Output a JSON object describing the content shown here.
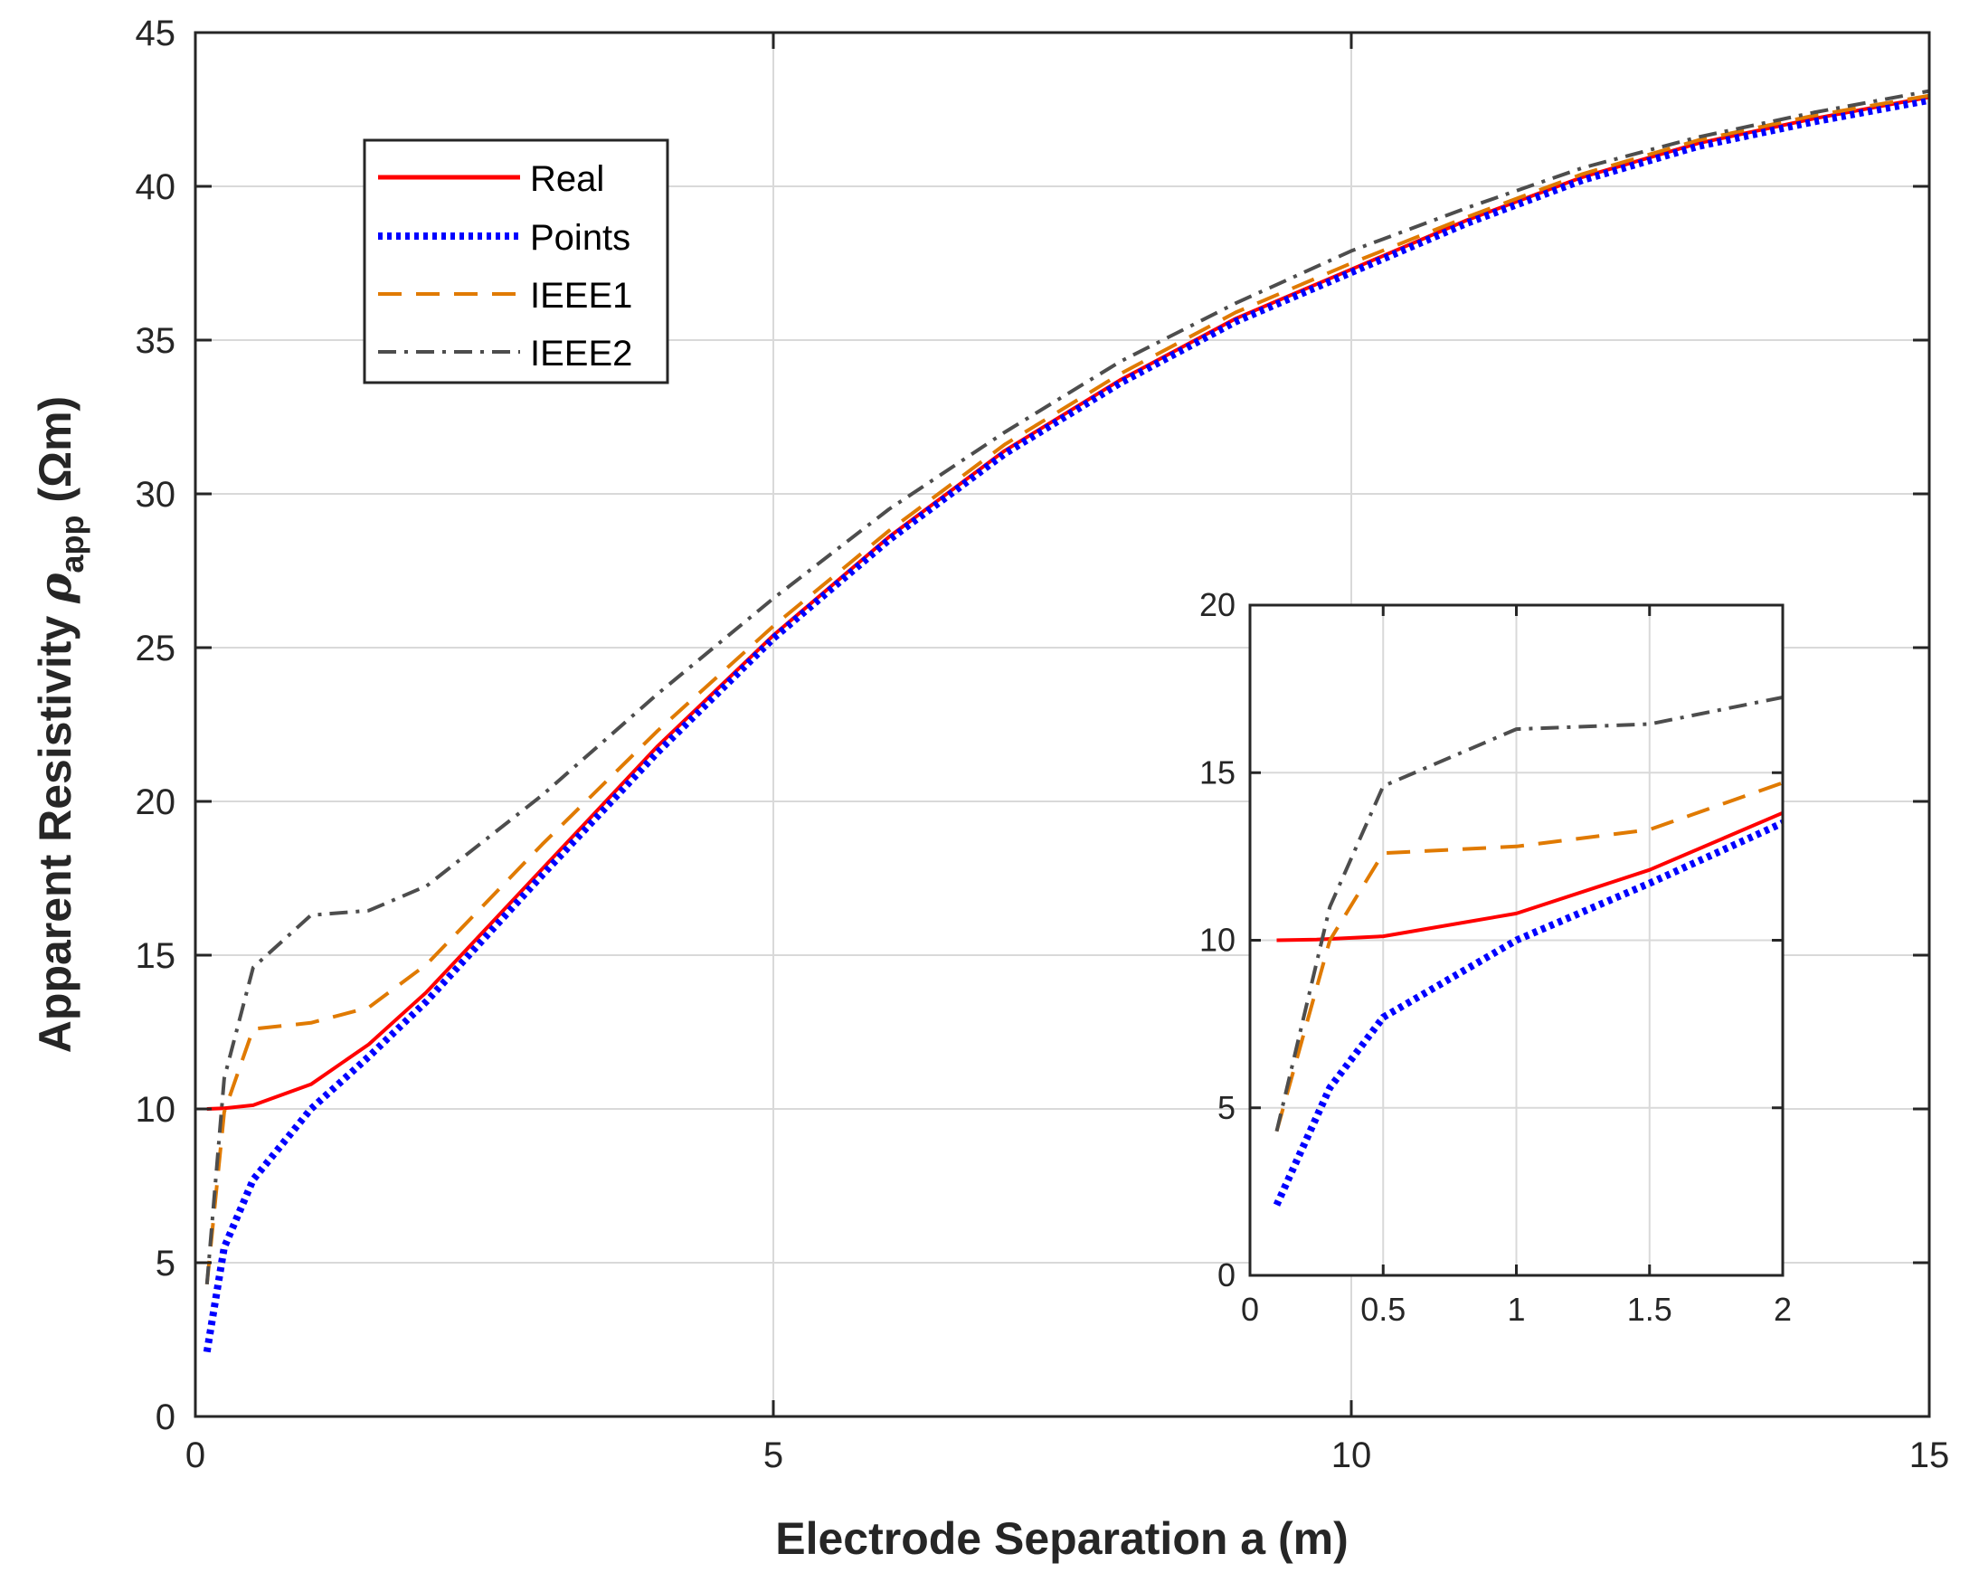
{
  "chart_data": [
    {
      "type": "line",
      "role": "main",
      "xlabel": "Electrode Separation a (m)",
      "ylabel_main": "Apparent Resistivity ",
      "ylabel_symbol": "ρ",
      "ylabel_subscript": "app",
      "ylabel_unit": " (Ωm)",
      "xlim": [
        0,
        15
      ],
      "ylim": [
        0,
        45
      ],
      "xticks": [
        0,
        5,
        10,
        15
      ],
      "yticks": [
        0,
        5,
        10,
        15,
        20,
        25,
        30,
        35,
        40,
        45
      ],
      "grid": true,
      "legend_position": "upper-left",
      "series": [
        {
          "name": "Real",
          "color": "#ff0000",
          "dash": "solid",
          "x": [
            0.1,
            0.25,
            0.5,
            1.0,
            1.5,
            2.0,
            3.0,
            4.0,
            5.0,
            6.0,
            7.0,
            8.0,
            9.0,
            10.0,
            11.0,
            12.0,
            13.0,
            14.0,
            15.0
          ],
          "y": [
            10.0,
            10.02,
            10.12,
            10.8,
            12.1,
            13.8,
            17.8,
            21.8,
            25.4,
            28.6,
            31.4,
            33.7,
            35.7,
            37.3,
            38.9,
            40.3,
            41.4,
            42.2,
            42.9
          ]
        },
        {
          "name": "Points",
          "color": "#0000ff",
          "dash": "dotted",
          "x": [
            0.1,
            0.25,
            0.5,
            1.0,
            1.5,
            2.0,
            3.0,
            4.0,
            5.0,
            6.0,
            7.0,
            8.0,
            9.0,
            10.0,
            11.0,
            12.0,
            13.0,
            14.0,
            15.0
          ],
          "y": [
            2.1,
            5.5,
            7.7,
            10.0,
            11.7,
            13.5,
            17.6,
            21.6,
            25.3,
            28.5,
            31.3,
            33.6,
            35.6,
            37.2,
            38.8,
            40.2,
            41.3,
            42.1,
            42.8
          ]
        },
        {
          "name": "IEEE1",
          "color": "#e07a00",
          "dash": "dashed",
          "x": [
            0.1,
            0.25,
            0.5,
            1.0,
            1.5,
            2.0,
            3.0,
            4.0,
            5.0,
            6.0,
            7.0,
            8.0,
            9.0,
            10.0,
            11.0,
            12.0,
            13.0,
            14.0,
            15.0
          ],
          "y": [
            4.3,
            9.9,
            12.6,
            12.8,
            13.3,
            14.7,
            18.6,
            22.3,
            25.7,
            28.8,
            31.6,
            33.9,
            35.9,
            37.5,
            39.0,
            40.4,
            41.5,
            42.3,
            42.95
          ]
        },
        {
          "name": "IEEE2",
          "color": "#4d4d4d",
          "dash": "dashdot",
          "x": [
            0.1,
            0.25,
            0.5,
            1.0,
            1.5,
            2.0,
            3.0,
            4.0,
            5.0,
            6.0,
            7.0,
            8.0,
            9.0,
            10.0,
            11.0,
            12.0,
            13.0,
            14.0,
            15.0
          ],
          "y": [
            4.3,
            11.0,
            14.6,
            16.3,
            16.45,
            17.25,
            20.2,
            23.5,
            26.6,
            29.5,
            32.0,
            34.3,
            36.2,
            37.9,
            39.3,
            40.6,
            41.6,
            42.4,
            43.1
          ]
        }
      ]
    },
    {
      "type": "line",
      "role": "inset",
      "xlim": [
        0,
        2
      ],
      "ylim": [
        0,
        20
      ],
      "xticks": [
        0,
        0.5,
        1,
        1.5,
        2
      ],
      "xtick_labels": [
        "0",
        "0.5",
        "1",
        "1.5",
        "2"
      ],
      "yticks": [
        0,
        5,
        10,
        15,
        20
      ],
      "grid": true,
      "series": [
        {
          "name": "Real",
          "color": "#ff0000",
          "dash": "solid",
          "x": [
            0.1,
            0.25,
            0.5,
            1.0,
            1.5,
            2.0
          ],
          "y": [
            10.0,
            10.02,
            10.12,
            10.8,
            12.1,
            13.8
          ]
        },
        {
          "name": "Points",
          "color": "#0000ff",
          "dash": "dotted",
          "x": [
            0.1,
            0.3,
            0.5,
            1.0,
            1.5,
            2.0
          ],
          "y": [
            2.1,
            5.6,
            7.7,
            10.0,
            11.7,
            13.5
          ]
        },
        {
          "name": "IEEE1",
          "color": "#e07a00",
          "dash": "dashed",
          "x": [
            0.1,
            0.3,
            0.5,
            1.0,
            1.5,
            2.0
          ],
          "y": [
            4.3,
            10.0,
            12.6,
            12.8,
            13.3,
            14.7
          ]
        },
        {
          "name": "IEEE2",
          "color": "#4d4d4d",
          "dash": "dashdot",
          "x": [
            0.1,
            0.3,
            0.5,
            1.0,
            1.5,
            2.0
          ],
          "y": [
            4.3,
            11.0,
            14.6,
            16.3,
            16.45,
            17.25
          ]
        }
      ]
    }
  ],
  "legend": {
    "entries": [
      "Real",
      "Points",
      "IEEE1",
      "IEEE2"
    ]
  }
}
